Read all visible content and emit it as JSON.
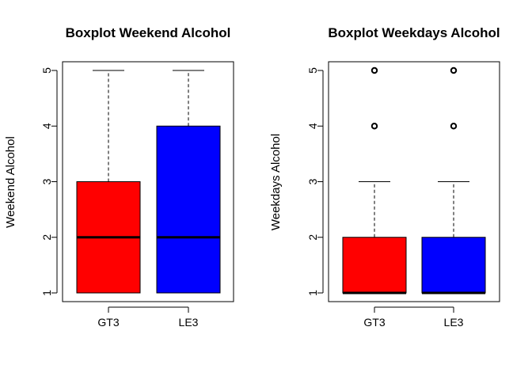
{
  "chart_data": [
    {
      "type": "boxplot",
      "title": "Boxplot Weekend Alcohol",
      "xlabel": "",
      "ylabel": "Weekend Alcohol",
      "ylim": [
        1,
        5
      ],
      "yticks": [
        1,
        2,
        3,
        4,
        5
      ],
      "grid": false,
      "categories": [
        "GT3",
        "LE3"
      ],
      "colors": [
        "#ff0000",
        "#0000ff"
      ],
      "boxes": [
        {
          "category": "GT3",
          "min": 1,
          "q1": 1,
          "median": 2,
          "q3": 3,
          "max": 5,
          "outliers": []
        },
        {
          "category": "LE3",
          "min": 1,
          "q1": 1,
          "median": 2,
          "q3": 4,
          "max": 5,
          "outliers": []
        }
      ]
    },
    {
      "type": "boxplot",
      "title": "Boxplot Weekdays Alcohol",
      "xlabel": "",
      "ylabel": "Weekdays Alcohol",
      "ylim": [
        1,
        5
      ],
      "yticks": [
        1,
        2,
        3,
        4,
        5
      ],
      "grid": false,
      "categories": [
        "GT3",
        "LE3"
      ],
      "colors": [
        "#ff0000",
        "#0000ff"
      ],
      "boxes": [
        {
          "category": "GT3",
          "min": 1,
          "q1": 1,
          "median": 1,
          "q3": 2,
          "max": 3,
          "outliers": [
            4,
            5
          ]
        },
        {
          "category": "LE3",
          "min": 1,
          "q1": 1,
          "median": 1,
          "q3": 2,
          "max": 3,
          "outliers": [
            4,
            5
          ]
        }
      ]
    }
  ]
}
